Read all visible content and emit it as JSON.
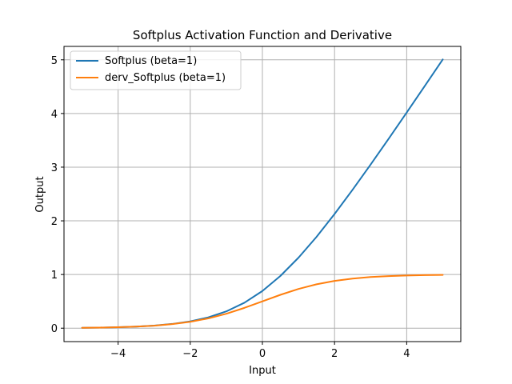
{
  "chart_data": {
    "type": "line",
    "title": "Softplus Activation Function and Derivative",
    "xlabel": "Input",
    "ylabel": "Output",
    "xlim": [
      -5.5,
      5.5
    ],
    "ylim": [
      -0.25,
      5.25
    ],
    "xticks": [
      -4,
      -2,
      0,
      2,
      4
    ],
    "yticks": [
      0,
      1,
      2,
      3,
      4,
      5
    ],
    "xtick_labels": [
      "−4",
      "−2",
      "0",
      "2",
      "4"
    ],
    "ytick_labels": [
      "0",
      "1",
      "2",
      "3",
      "4",
      "5"
    ],
    "grid": true,
    "legend_position": "top-left",
    "series": [
      {
        "name": "Softplus (beta=1)",
        "color": "#1f77b4",
        "x": [
          -5.0,
          -4.5,
          -4.0,
          -3.5,
          -3.0,
          -2.5,
          -2.0,
          -1.5,
          -1.0,
          -0.5,
          0.0,
          0.5,
          1.0,
          1.5,
          2.0,
          2.5,
          3.0,
          3.5,
          4.0,
          4.5,
          5.0
        ],
        "y": [
          0.007,
          0.011,
          0.018,
          0.03,
          0.049,
          0.079,
          0.127,
          0.201,
          0.313,
          0.474,
          0.693,
          0.974,
          1.313,
          1.701,
          2.127,
          2.579,
          3.049,
          3.53,
          4.018,
          4.511,
          5.007
        ]
      },
      {
        "name": "derv_Softplus (beta=1)",
        "color": "#ff7f0e",
        "x": [
          -5.0,
          -4.5,
          -4.0,
          -3.5,
          -3.0,
          -2.5,
          -2.0,
          -1.5,
          -1.0,
          -0.5,
          0.0,
          0.5,
          1.0,
          1.5,
          2.0,
          2.5,
          3.0,
          3.5,
          4.0,
          4.5,
          5.0
        ],
        "y": [
          0.007,
          0.011,
          0.018,
          0.029,
          0.047,
          0.076,
          0.119,
          0.182,
          0.269,
          0.378,
          0.5,
          0.622,
          0.731,
          0.818,
          0.881,
          0.924,
          0.953,
          0.971,
          0.982,
          0.989,
          0.993
        ]
      }
    ]
  }
}
